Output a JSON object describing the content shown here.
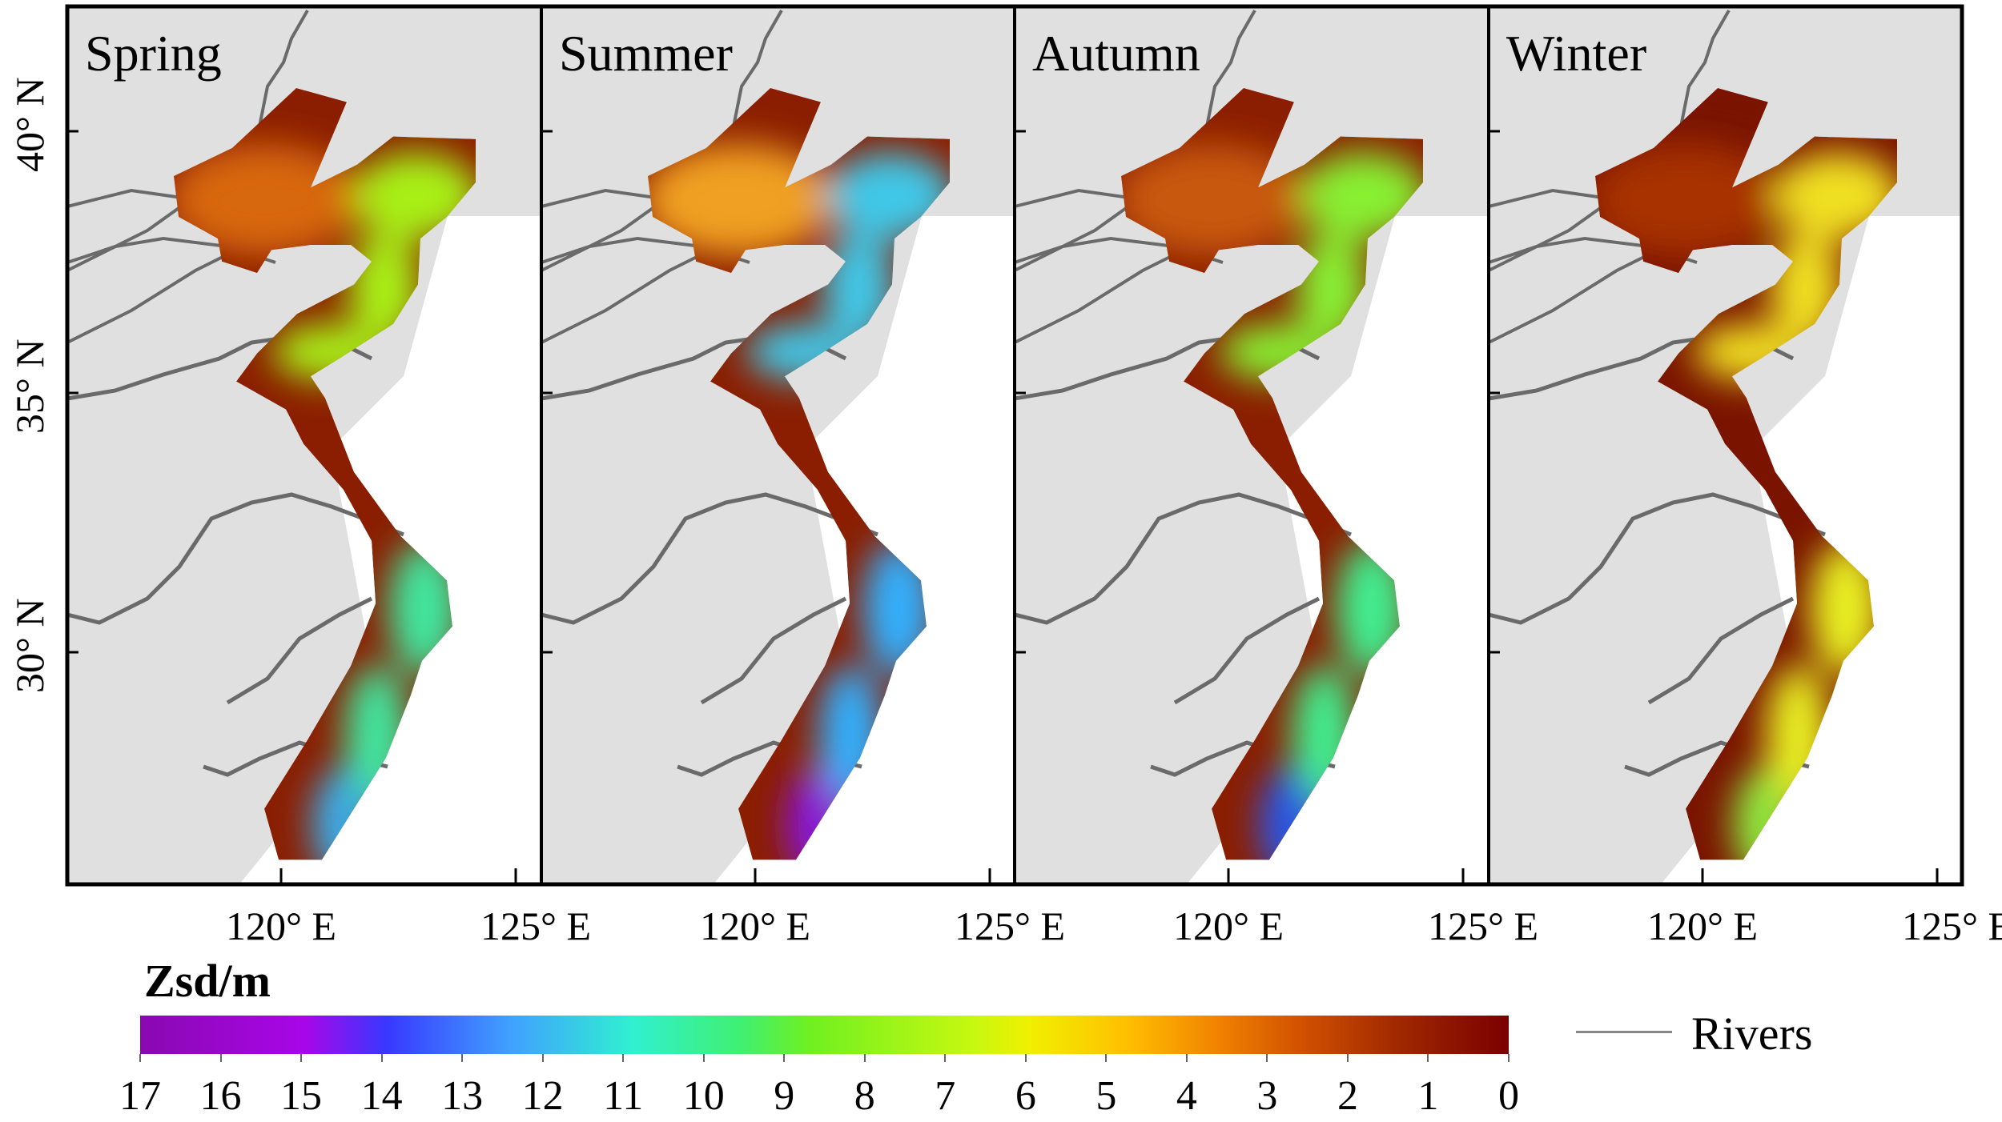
{
  "seasons": [
    {
      "label": "Spring",
      "colors": {
        "near": "#8b1e00",
        "bohai": "#d8680a",
        "north": "#a8f018",
        "south": "#40e8a0",
        "deep": "#38b0f0"
      }
    },
    {
      "label": "Summer",
      "colors": {
        "near": "#8b1e00",
        "bohai": "#f0a020",
        "north": "#40c8e8",
        "south": "#30b0ff",
        "deep": "#8818e0"
      }
    },
    {
      "label": "Autumn",
      "colors": {
        "near": "#8b1e00",
        "bohai": "#c85808",
        "north": "#88f030",
        "south": "#40f090",
        "deep": "#2858f0"
      }
    },
    {
      "label": "Winter",
      "colors": {
        "near": "#7a1400",
        "bohai": "#a83000",
        "north": "#f0e020",
        "south": "#e8f020",
        "deep": "#90f040"
      }
    }
  ],
  "lat_labels": [
    "40° N",
    "35° N",
    "30° N"
  ],
  "lon_labels": [
    "120° E",
    "125° E"
  ],
  "legend": {
    "title": "Zsd/m",
    "ticks": [
      "17",
      "16",
      "15",
      "14",
      "13",
      "12",
      "11",
      "10",
      "9",
      "8",
      "7",
      "6",
      "5",
      "4",
      "3",
      "2",
      "1",
      "0"
    ],
    "range": [
      0,
      17
    ],
    "rivers_label": "Rivers"
  },
  "colors": {
    "land": "#e0e0e0",
    "sea": "#ffffff",
    "river": "#6a6a6a",
    "frame": "#000000"
  }
}
